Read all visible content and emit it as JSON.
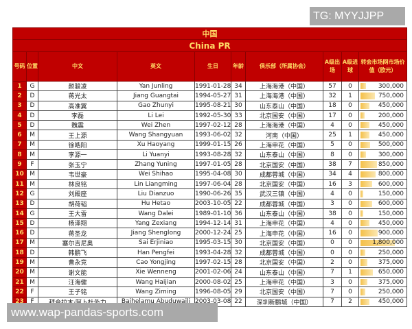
{
  "watermarks": {
    "tg": "TG: MYYJJPP",
    "site": "www.wap-pandas-sports.com"
  },
  "title_cn": "中国",
  "title_en": "China PR",
  "headers": [
    "号码",
    "位置",
    "中文",
    "英文",
    "生日",
    "年龄",
    "俱乐部（所属协会）",
    "A级出场",
    "A级进球",
    "转会市场网市场价值（欧元）"
  ],
  "colors": {
    "header_bg": "#c00000",
    "header_text": "#ffd966",
    "bar": "#f4c04a"
  },
  "rows": [
    [
      "1",
      "G",
      "颜骏凌",
      "Yan Junling",
      "1991-01-28",
      "34",
      "上海海港（中国）",
      "57",
      "0",
      "300,000"
    ],
    [
      "2",
      "D",
      "蒋光太",
      "Jiang Guangtai",
      "1994-05-27",
      "31",
      "上海海港（中国）",
      "32",
      "1",
      "750,000"
    ],
    [
      "3",
      "D",
      "高准翼",
      "Gao Zhunyi",
      "1995-08-21",
      "30",
      "山东泰山（中国）",
      "18",
      "0",
      "450,000"
    ],
    [
      "4",
      "D",
      "李磊",
      "Li Lei",
      "1992-05-30",
      "33",
      "北京国安（中国）",
      "17",
      "0",
      "200,000"
    ],
    [
      "5",
      "D",
      "魏震",
      "Wei Zhen",
      "1997-02-12",
      "28",
      "上海海港（中国）",
      "4",
      "0",
      "450,000"
    ],
    [
      "6",
      "M",
      "王上源",
      "Wang Shangyuan",
      "1993-06-02",
      "32",
      "河南（中国）",
      "25",
      "1",
      "450,000"
    ],
    [
      "7",
      "M",
      "徐皓阳",
      "Xu Haoyang",
      "1999-01-15",
      "26",
      "上海申花（中国）",
      "5",
      "0",
      "500,000"
    ],
    [
      "8",
      "M",
      "李源一",
      "Li Yuanyi",
      "1993-08-28",
      "32",
      "山东泰山（中国）",
      "8",
      "0",
      "300,000"
    ],
    [
      "9",
      "F",
      "张玉宁",
      "Zhang Yuning",
      "1997-01-05",
      "28",
      "北京国安（中国）",
      "38",
      "7",
      "850,000"
    ],
    [
      "10",
      "M",
      "韦世豪",
      "Wei Shihao",
      "1995-04-08",
      "30",
      "成都蓉城（中国）",
      "34",
      "4",
      "800,000"
    ],
    [
      "11",
      "M",
      "林良铭",
      "Lin Liangming",
      "1997-06-04",
      "28",
      "北京国安（中国）",
      "16",
      "3",
      "600,000"
    ],
    [
      "12",
      "G",
      "刘殿座",
      "Liu Dianzuo",
      "1990-06-26",
      "35",
      "武汉三镇（中国）",
      "4",
      "0",
      "150,000"
    ],
    [
      "13",
      "D",
      "胡荷韬",
      "Hu Hetao",
      "2003-10-05",
      "22",
      "成都蓉城（中国）",
      "3",
      "0",
      "600,000"
    ],
    [
      "14",
      "G",
      "王大雷",
      "Wang Dalei",
      "1989-01-10",
      "36",
      "山东泰山（中国）",
      "38",
      "0",
      "150,000"
    ],
    [
      "15",
      "D",
      "杨泽翔",
      "Yang Zexiang",
      "1994-12-14",
      "31",
      "上海申花（中国）",
      "4",
      "0",
      "450,000"
    ],
    [
      "16",
      "D",
      "蒋圣龙",
      "Jiang Shenglong",
      "2000-12-24",
      "25",
      "上海申花（中国）",
      "16",
      "0",
      "900,000"
    ],
    [
      "17",
      "M",
      "塞尔吉尼奥",
      "Sai Erjiniao",
      "1995-03-15",
      "30",
      "北京国安（中国）",
      "0",
      "0",
      "1,800,000"
    ],
    [
      "18",
      "D",
      "韩鹏飞",
      "Han Pengfei",
      "1993-04-28",
      "32",
      "成都蓉城（中国）",
      "0",
      "0",
      "250,000"
    ],
    [
      "19",
      "M",
      "曹永竞",
      "Cao Yongjing",
      "1997-02-15",
      "28",
      "北京国安（中国）",
      "2",
      "0",
      "375,000"
    ],
    [
      "20",
      "M",
      "谢文能",
      "Xie Wenneng",
      "2001-02-06",
      "24",
      "山东泰山（中国）",
      "7",
      "1",
      "650,000"
    ],
    [
      "21",
      "M",
      "汪海健",
      "Wang Haijian",
      "2000-08-02",
      "25",
      "上海申花（中国）",
      "3",
      "0",
      "375,000"
    ],
    [
      "22",
      "F",
      "王子铭",
      "Wang Ziming",
      "1996-08-05",
      "29",
      "北京国安（中国）",
      "7",
      "0",
      "250,000"
    ],
    [
      "23",
      "F",
      "拜合拉木·阿卜杜外力",
      "Baihelamu Abuduwaili",
      "2003-03-08",
      "22",
      "深圳新鹏城（中国）",
      "7",
      "2",
      "450,000"
    ]
  ]
}
